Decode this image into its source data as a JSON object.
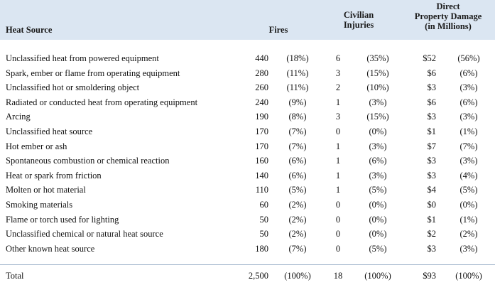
{
  "header": {
    "heat_source": "Heat Source",
    "fires": "Fires",
    "injuries_line1": "Civilian",
    "injuries_line2": "Injuries",
    "damage_line1": "Direct",
    "damage_line2": "Property Damage",
    "damage_line3": "(in Millions)"
  },
  "rows": [
    {
      "source": "Unclassified heat from powered equipment",
      "fires": "440",
      "fires_pct": "(18%)",
      "injuries": "6",
      "injuries_pct": "(35%)",
      "damage": "$52",
      "damage_pct": "(56%)"
    },
    {
      "source": "Spark, ember or flame from operating equipment",
      "fires": "280",
      "fires_pct": "(11%)",
      "injuries": "3",
      "injuries_pct": "(15%)",
      "damage": "$6",
      "damage_pct": "(6%)"
    },
    {
      "source": "Unclassified hot or smoldering object",
      "fires": "260",
      "fires_pct": "(11%)",
      "injuries": "2",
      "injuries_pct": "(10%)",
      "damage": "$3",
      "damage_pct": "(3%)"
    },
    {
      "source": "Radiated or conducted heat from operating equipment",
      "fires": "240",
      "fires_pct": "(9%)",
      "injuries": "1",
      "injuries_pct": "(3%)",
      "damage": "$6",
      "damage_pct": "(6%)"
    },
    {
      "source": "Arcing",
      "fires": "190",
      "fires_pct": "(8%)",
      "injuries": "3",
      "injuries_pct": "(15%)",
      "damage": "$3",
      "damage_pct": "(3%)"
    },
    {
      "source": "Unclassified heat source",
      "fires": "170",
      "fires_pct": "(7%)",
      "injuries": "0",
      "injuries_pct": "(0%)",
      "damage": "$1",
      "damage_pct": "(1%)"
    },
    {
      "source": "Hot ember or ash",
      "fires": "170",
      "fires_pct": "(7%)",
      "injuries": "1",
      "injuries_pct": "(3%)",
      "damage": "$7",
      "damage_pct": "(7%)"
    },
    {
      "source": "Spontaneous combustion or chemical reaction",
      "fires": "160",
      "fires_pct": "(6%)",
      "injuries": "1",
      "injuries_pct": "(6%)",
      "damage": "$3",
      "damage_pct": "(3%)"
    },
    {
      "source": "Heat or spark from friction",
      "fires": "140",
      "fires_pct": "(6%)",
      "injuries": "1",
      "injuries_pct": "(3%)",
      "damage": "$3",
      "damage_pct": "(4%)"
    },
    {
      "source": "Molten or hot material",
      "fires": "110",
      "fires_pct": "(5%)",
      "injuries": "1",
      "injuries_pct": "(5%)",
      "damage": "$4",
      "damage_pct": "(5%)"
    },
    {
      "source": "Smoking materials",
      "fires": "60",
      "fires_pct": "(2%)",
      "injuries": "0",
      "injuries_pct": "(0%)",
      "damage": "$0",
      "damage_pct": "(0%)"
    },
    {
      "source": "Flame or torch used for lighting",
      "fires": "50",
      "fires_pct": "(2%)",
      "injuries": "0",
      "injuries_pct": "(0%)",
      "damage": "$1",
      "damage_pct": "(1%)"
    },
    {
      "source": "Unclassified chemical or natural heat source",
      "fires": "50",
      "fires_pct": "(2%)",
      "injuries": "0",
      "injuries_pct": "(0%)",
      "damage": "$2",
      "damage_pct": "(2%)"
    },
    {
      "source": "Other known heat source",
      "fires": "180",
      "fires_pct": "(7%)",
      "injuries": "0",
      "injuries_pct": "(5%)",
      "damage": "$3",
      "damage_pct": "(3%)"
    }
  ],
  "total": {
    "source": "Total",
    "fires": "2,500",
    "fires_pct": "(100%)",
    "injuries": "18",
    "injuries_pct": "(100%)",
    "damage": "$93",
    "damage_pct": "(100%)"
  },
  "colors": {
    "header_bg": "#dbe6f2"
  }
}
